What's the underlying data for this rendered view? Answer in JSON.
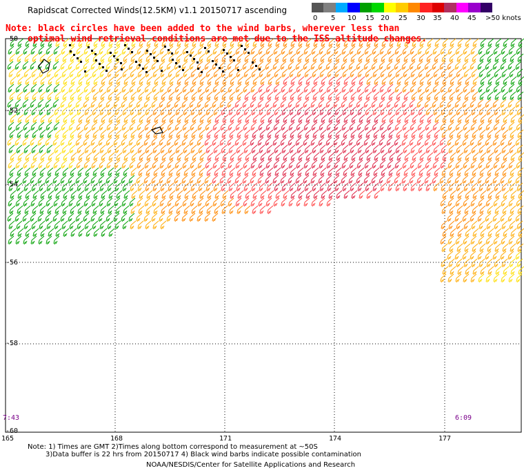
{
  "title": "Rapidscat Corrected Winds(12.5KM) v1.1 20150717 ascending",
  "note_line1": "Note: black circles have been added to the wind barbs, wherever less than",
  "note_line2": "optimal wind retrieval conditions are met due to the ISS altitude changes.",
  "legend": {
    "labels": [
      "0",
      "5",
      "10",
      "15",
      "20",
      "25",
      "30",
      "35",
      "40",
      "45",
      ">50 knots"
    ],
    "colors": [
      "#555555",
      "#808080",
      "#00aaff",
      "#0000ff",
      "#00a000",
      "#00d800",
      "#ffff00",
      "#ffcc00",
      "#ff8800",
      "#ff2222",
      "#dd0000",
      "#b03060",
      "#ff00ff",
      "#9900cc",
      "#330066"
    ]
  },
  "lat_labels": [
    "-50",
    "-52",
    "-54",
    "-56",
    "-58",
    "-60"
  ],
  "lon_labels": [
    "165",
    "168",
    "171",
    "174",
    "177"
  ],
  "times": {
    "left": "7:43",
    "right": "6:09"
  },
  "footer": {
    "line1": "Note: 1) Times are GMT 2)Times along bottom correspond to measurement at ~50S",
    "line2": "3)Data buffer is 22 hrs from 20150717 4) Black wind barbs indicate possible contamination",
    "line3": "NOAA/NESDIS/Center for Satellite Applications and Research"
  }
}
